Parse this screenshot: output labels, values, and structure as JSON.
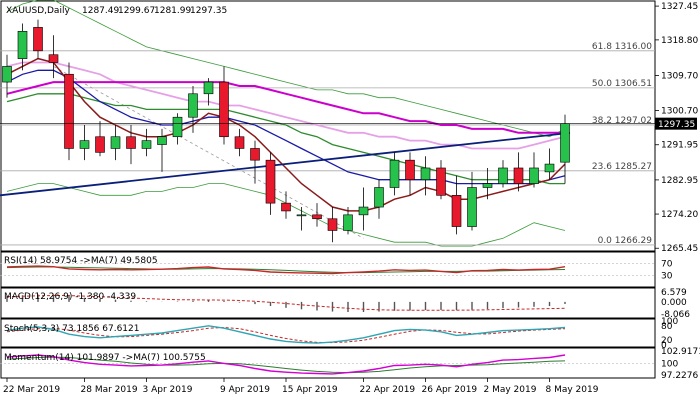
{
  "colors": {
    "background": "#ffffff",
    "bull_candle": "#27c24c",
    "bear_candle": "#e8192c",
    "band": "#3a9b3a",
    "ema_fast": "#8b1a1a",
    "ema_mid": "#1a1aa8",
    "ema_green": "#2e8b2e",
    "magenta_ma": "#cc00cc",
    "pink_ma": "#e6a0e6",
    "trend_navy": "#0a1f7a",
    "rsi_line": "#c62828",
    "rsi_signal": "#2e7d32",
    "macd_hist": "#555555",
    "macd_signal": "#c62828",
    "stoch_main": "#2ea6b3",
    "stoch_signal": "#c62828",
    "mom_main": "#d400d4",
    "mom_signal": "#2e7d32",
    "price_tag_bg": "#000000",
    "price_tag_text": "#ffffff"
  },
  "chart_data": {
    "type": "candlestick",
    "title": "XAUUSD,Daily",
    "ohlc_header": [
      "1287.49",
      "1299.67",
      "1281.99",
      "1297.35"
    ],
    "current_price": "1297.35",
    "current_value": 1297.35,
    "ylim": [
      1265.0,
      1328.5
    ],
    "y_ticks": [
      {
        "value": 1327.45,
        "label": "1327.45"
      },
      {
        "value": 1318.8,
        "label": "1318.80"
      },
      {
        "value": 1309.7,
        "label": "1309.70"
      },
      {
        "value": 1300.7,
        "label": "1300.70"
      },
      {
        "value": 1291.95,
        "label": "1291.95"
      },
      {
        "value": 1282.95,
        "label": "1282.95"
      },
      {
        "value": 1274.2,
        "label": "1274.20"
      },
      {
        "value": 1265.45,
        "label": "1265.45"
      }
    ],
    "fib_levels": [
      {
        "value": 1316.0,
        "label": "61.8 1316.00"
      },
      {
        "value": 1306.51,
        "label": "50.0 1306.51"
      },
      {
        "value": 1297.02,
        "label": "38.2 1297.02"
      },
      {
        "value": 1285.27,
        "label": "23.6 1285.27"
      },
      {
        "value": 1266.29,
        "label": "0.0 1266.29"
      }
    ],
    "x_labels": [
      {
        "index": 0,
        "label": "22 Mar 2019"
      },
      {
        "index": 5,
        "label": "28 Mar 2019"
      },
      {
        "index": 9,
        "label": "3 Apr 2019"
      },
      {
        "index": 14,
        "label": "9 Apr 2019"
      },
      {
        "index": 18,
        "label": "15 Apr 2019"
      },
      {
        "index": 23,
        "label": "22 Apr 2019"
      },
      {
        "index": 27,
        "label": "26 Apr 2019"
      },
      {
        "index": 31,
        "label": "2 May 2019"
      },
      {
        "index": 35,
        "label": "8 May 2019"
      }
    ],
    "candles": [
      {
        "o": 1308,
        "h": 1315,
        "l": 1304,
        "c": 1312
      },
      {
        "o": 1314,
        "h": 1323,
        "l": 1311,
        "c": 1321
      },
      {
        "o": 1322,
        "h": 1324,
        "l": 1314,
        "c": 1316
      },
      {
        "o": 1315,
        "h": 1320,
        "l": 1309,
        "c": 1313
      },
      {
        "o": 1310,
        "h": 1313,
        "l": 1288,
        "c": 1291
      },
      {
        "o": 1291,
        "h": 1297,
        "l": 1288,
        "c": 1293
      },
      {
        "o": 1294,
        "h": 1298,
        "l": 1289,
        "c": 1290
      },
      {
        "o": 1291,
        "h": 1297,
        "l": 1288,
        "c": 1294
      },
      {
        "o": 1294,
        "h": 1297,
        "l": 1287,
        "c": 1291
      },
      {
        "o": 1291,
        "h": 1296,
        "l": 1289,
        "c": 1293
      },
      {
        "o": 1292,
        "h": 1296,
        "l": 1285,
        "c": 1294
      },
      {
        "o": 1294,
        "h": 1300,
        "l": 1292,
        "c": 1299
      },
      {
        "o": 1299,
        "h": 1307,
        "l": 1295,
        "c": 1305
      },
      {
        "o": 1305,
        "h": 1309,
        "l": 1302,
        "c": 1308
      },
      {
        "o": 1308,
        "h": 1312,
        "l": 1292,
        "c": 1294
      },
      {
        "o": 1294,
        "h": 1296,
        "l": 1289,
        "c": 1291
      },
      {
        "o": 1291,
        "h": 1293,
        "l": 1282,
        "c": 1288
      },
      {
        "o": 1288,
        "h": 1290,
        "l": 1274,
        "c": 1277
      },
      {
        "o": 1277,
        "h": 1280,
        "l": 1273,
        "c": 1275
      },
      {
        "o": 1274,
        "h": 1276,
        "l": 1270,
        "c": 1274
      },
      {
        "o": 1274,
        "h": 1277,
        "l": 1271,
        "c": 1273
      },
      {
        "o": 1273,
        "h": 1276,
        "l": 1267,
        "c": 1270
      },
      {
        "o": 1270,
        "h": 1276,
        "l": 1269,
        "c": 1274
      },
      {
        "o": 1274,
        "h": 1281,
        "l": 1270,
        "c": 1276
      },
      {
        "o": 1276,
        "h": 1283,
        "l": 1273,
        "c": 1281
      },
      {
        "o": 1281,
        "h": 1290,
        "l": 1279,
        "c": 1288
      },
      {
        "o": 1288,
        "h": 1290,
        "l": 1279,
        "c": 1283
      },
      {
        "o": 1283,
        "h": 1289,
        "l": 1279,
        "c": 1286
      },
      {
        "o": 1286,
        "h": 1288,
        "l": 1278,
        "c": 1279
      },
      {
        "o": 1279,
        "h": 1284,
        "l": 1269,
        "c": 1271
      },
      {
        "o": 1271,
        "h": 1285,
        "l": 1270,
        "c": 1281
      },
      {
        "o": 1281,
        "h": 1286,
        "l": 1278,
        "c": 1282
      },
      {
        "o": 1282,
        "h": 1288,
        "l": 1281,
        "c": 1286
      },
      {
        "o": 1286,
        "h": 1290,
        "l": 1280,
        "c": 1282
      },
      {
        "o": 1282,
        "h": 1290,
        "l": 1281,
        "c": 1286
      },
      {
        "o": 1285,
        "h": 1291,
        "l": 1283,
        "c": 1287
      },
      {
        "o": 1287.49,
        "h": 1299.67,
        "l": 1281.99,
        "c": 1297.35
      }
    ],
    "indicators": {
      "ema_fast": [
        1310,
        1312,
        1314,
        1313,
        1308,
        1303,
        1299,
        1297,
        1295,
        1294,
        1294,
        1295,
        1297,
        1300,
        1299,
        1297,
        1294,
        1290,
        1286,
        1282,
        1279,
        1276,
        1275,
        1275,
        1276,
        1278,
        1279,
        1281,
        1280,
        1278,
        1278,
        1279,
        1280,
        1281,
        1282,
        1283,
        1287
      ],
      "ema_mid": [
        1308,
        1310,
        1311,
        1311,
        1309,
        1306,
        1303,
        1301,
        1299,
        1298,
        1297,
        1297,
        1298,
        1299,
        1299,
        1298,
        1297,
        1295,
        1293,
        1291,
        1289,
        1287,
        1285,
        1284,
        1283,
        1283,
        1283,
        1283,
        1283,
        1282,
        1282,
        1282,
        1282,
        1282,
        1282,
        1283,
        1284
      ],
      "ema_green": [
        1303,
        1304,
        1305,
        1305,
        1305,
        1304,
        1303,
        1302,
        1302,
        1301,
        1301,
        1301,
        1301,
        1301,
        1301,
        1300,
        1299,
        1298,
        1297,
        1295,
        1294,
        1292,
        1291,
        1290,
        1289,
        1288,
        1287,
        1286,
        1285,
        1284,
        1283,
        1283,
        1283,
        1283,
        1283,
        1282,
        1282
      ],
      "magenta_ma": [
        1305,
        1306,
        1307,
        1308,
        1308,
        1308,
        1308,
        1308,
        1308,
        1308,
        1308,
        1308,
        1308,
        1308,
        1308,
        1307,
        1307,
        1306,
        1305,
        1304,
        1303,
        1302,
        1301,
        1300,
        1300,
        1299,
        1298,
        1298,
        1297,
        1297,
        1296,
        1296,
        1296,
        1295,
        1295,
        1295,
        1295
      ],
      "pink_ma": [
        1312,
        1313,
        1313,
        1313,
        1312,
        1311,
        1310,
        1308,
        1307,
        1306,
        1305,
        1304,
        1303,
        1303,
        1302,
        1302,
        1301,
        1300,
        1299,
        1298,
        1297,
        1296,
        1295,
        1295,
        1294,
        1294,
        1293,
        1293,
        1292,
        1292,
        1291,
        1291,
        1291,
        1291,
        1292,
        1293,
        1294
      ],
      "band_upper": [
        1326,
        1328,
        1329,
        1329,
        1327,
        1325,
        1323,
        1321,
        1319,
        1317,
        1316,
        1315,
        1314,
        1313,
        1312,
        1311,
        1310,
        1309,
        1308,
        1307,
        1306,
        1306,
        1305,
        1305,
        1304,
        1304,
        1303,
        1302,
        1301,
        1300,
        1299,
        1298,
        1297,
        1296,
        1295,
        1294,
        1296
      ],
      "band_lower": [
        1280,
        1281,
        1282,
        1282,
        1281,
        1280,
        1279,
        1279,
        1279,
        1280,
        1280,
        1281,
        1281,
        1282,
        1282,
        1281,
        1280,
        1279,
        1277,
        1275,
        1273,
        1271,
        1270,
        1269,
        1268,
        1267,
        1267,
        1267,
        1266,
        1266,
        1266,
        1267,
        1268,
        1270,
        1272,
        1271,
        1270
      ],
      "trend_start": 1279,
      "trend_end": 1295,
      "dash_start": 1312,
      "dash_end": 1268
    },
    "rsi": {
      "label": "RSI(14) 58.9754 ->MA(7) 49.5805",
      "levels": [
        {
          "value": 70,
          "label": "70"
        },
        {
          "value": 30,
          "label": "30"
        }
      ],
      "ylim": [
        0,
        100
      ],
      "main": [
        58,
        60,
        61,
        59,
        52,
        50,
        49,
        50,
        49,
        50,
        51,
        53,
        56,
        58,
        52,
        50,
        47,
        42,
        40,
        39,
        38,
        37,
        40,
        42,
        45,
        49,
        47,
        48,
        44,
        40,
        46,
        47,
        50,
        48,
        50,
        51,
        59
      ],
      "signal": [
        56,
        57,
        58,
        58,
        57,
        56,
        55,
        54,
        53,
        52,
        51,
        51,
        52,
        53,
        53,
        52,
        51,
        49,
        47,
        45,
        43,
        41,
        40,
        40,
        41,
        42,
        43,
        44,
        44,
        44,
        45,
        45,
        46,
        47,
        48,
        49,
        50
      ]
    },
    "macd": {
      "label": "MACD(12,26,9) -1.380 -4.339",
      "ticks": [
        {
          "value": 6.579,
          "label": "6.579"
        },
        {
          "value": 0,
          "label": "0.000"
        },
        {
          "value": -8.066,
          "label": "-8.066"
        }
      ],
      "ylim": [
        -9.5,
        8
      ],
      "hist": [
        4,
        4.5,
        5,
        4.8,
        3.8,
        2.8,
        2,
        1.5,
        0.8,
        0.4,
        0.1,
        0.3,
        0.8,
        1.2,
        0.6,
        -0.4,
        -1.5,
        -2.8,
        -4,
        -5,
        -5.8,
        -6.5,
        -6.8,
        -6.8,
        -6.5,
        -6,
        -5.8,
        -5.5,
        -5.4,
        -5.6,
        -5.3,
        -4.8,
        -4.2,
        -3.8,
        -3.3,
        -2.8,
        -1.4
      ],
      "signal": [
        3.5,
        3.8,
        4.1,
        4.3,
        4.2,
        3.9,
        3.5,
        3.1,
        2.6,
        2.2,
        1.8,
        1.5,
        1.4,
        1.3,
        1.2,
        0.9,
        0.4,
        -0.3,
        -1.1,
        -2,
        -2.8,
        -3.6,
        -4.3,
        -4.9,
        -5.3,
        -5.5,
        -5.6,
        -5.6,
        -5.6,
        -5.6,
        -5.5,
        -5.3,
        -5.1,
        -4.9,
        -4.7,
        -4.5,
        -4.3
      ]
    },
    "stoch": {
      "label": "Stoch(5,3,3) 73.1856 67.6121",
      "ticks": [
        {
          "value": 100,
          "label": "100"
        },
        {
          "value": 80,
          "label": "80"
        },
        {
          "value": 20,
          "label": "20"
        },
        {
          "value": 0,
          "label": "0"
        }
      ],
      "ylim": [
        0,
        100
      ],
      "main": [
        60,
        70,
        75,
        65,
        45,
        35,
        30,
        35,
        40,
        45,
        50,
        60,
        70,
        80,
        70,
        55,
        40,
        25,
        15,
        10,
        8,
        12,
        20,
        30,
        45,
        60,
        65,
        62,
        55,
        40,
        45,
        52,
        60,
        62,
        65,
        68,
        73
      ],
      "signal": [
        55,
        62,
        68,
        70,
        62,
        50,
        40,
        34,
        35,
        40,
        45,
        52,
        60,
        70,
        73,
        68,
        55,
        40,
        27,
        17,
        11,
        10,
        13,
        20,
        32,
        45,
        57,
        63,
        61,
        53,
        47,
        46,
        52,
        58,
        62,
        65,
        68
      ]
    },
    "momentum": {
      "label": "Momentum(14) 101.9897 ->MA(7) 100.5755",
      "ticks": [
        {
          "value": 102.9171,
          "label": "102.9171"
        },
        {
          "value": 100,
          "label": "100"
        },
        {
          "value": 97.2276,
          "label": "97.2276"
        }
      ],
      "ylim": [
        97.0,
        103.2
      ],
      "main": [
        101.5,
        101.8,
        102.0,
        101.6,
        100.8,
        100.2,
        99.8,
        99.6,
        99.4,
        99.5,
        99.6,
        99.9,
        100.3,
        100.6,
        100.0,
        99.5,
        98.8,
        98.2,
        97.9,
        97.7,
        97.6,
        97.5,
        97.8,
        98.2,
        98.8,
        99.5,
        99.6,
        99.8,
        99.6,
        99.2,
        99.8,
        100.2,
        100.8,
        100.9,
        101.2,
        101.4,
        102.0
      ],
      "signal": [
        101.0,
        101.2,
        101.4,
        101.5,
        101.4,
        101.1,
        100.8,
        100.5,
        100.1,
        99.8,
        99.6,
        99.6,
        99.7,
        99.9,
        100.0,
        99.9,
        99.6,
        99.2,
        98.8,
        98.4,
        98.1,
        97.9,
        97.8,
        97.9,
        98.1,
        98.5,
        98.9,
        99.2,
        99.4,
        99.5,
        99.6,
        99.7,
        99.9,
        100.1,
        100.3,
        100.5,
        100.6
      ]
    }
  }
}
